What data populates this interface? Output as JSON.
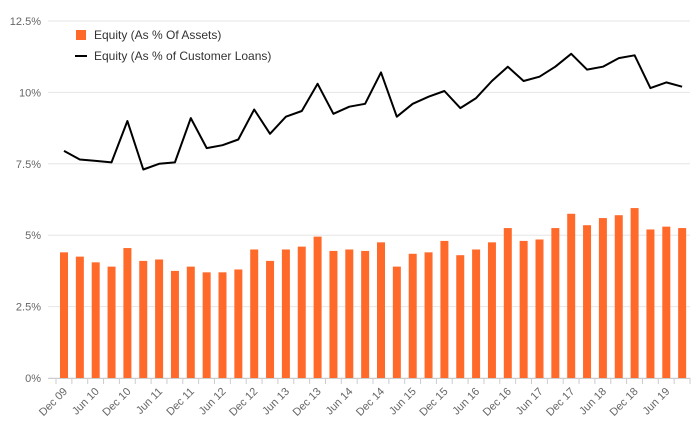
{
  "chart_data": {
    "type": "bar+line",
    "title": "",
    "xlabel": "",
    "ylabel": "",
    "ylim": [
      0,
      12.5
    ],
    "yticks": [
      "0%",
      "2.5%",
      "5%",
      "7.5%",
      "10%",
      "12.5%"
    ],
    "ytick_values": [
      0,
      2.5,
      5,
      7.5,
      10,
      12.5
    ],
    "xtick_labels": [
      "Dec 09",
      "Jun 10",
      "Dec 10",
      "Jun 11",
      "Dec 11",
      "Jun 12",
      "Dec 12",
      "Jun 13",
      "Dec 13",
      "Jun 14",
      "Dec 14",
      "Jun 15",
      "Dec 15",
      "Jun 16",
      "Dec 16",
      "Jun 17",
      "Dec 17",
      "Jun 18",
      "Dec 18",
      "Jun 19"
    ],
    "grid": true,
    "legend_position": "top-left",
    "series": [
      {
        "name": "Equity (As % Of Assets)",
        "kind": "bar",
        "color": "#ff6a2b",
        "values": [
          4.4,
          4.25,
          4.05,
          3.9,
          4.55,
          4.1,
          4.15,
          3.75,
          3.9,
          3.7,
          3.7,
          3.8,
          4.5,
          4.1,
          4.5,
          4.6,
          4.95,
          4.45,
          4.5,
          4.45,
          4.75,
          3.9,
          4.35,
          4.4,
          4.8,
          4.3,
          4.5,
          4.75,
          5.25,
          4.8,
          4.85,
          5.25,
          5.75,
          5.35,
          5.6,
          5.7,
          5.95,
          5.2,
          5.3,
          5.25
        ]
      },
      {
        "name": "Equity (As % of Customer Loans)",
        "kind": "line",
        "color": "#000000",
        "values": [
          7.95,
          7.65,
          7.6,
          7.55,
          9.0,
          7.3,
          7.5,
          7.55,
          9.1,
          8.05,
          8.15,
          8.35,
          9.4,
          8.55,
          9.15,
          9.35,
          10.3,
          9.25,
          9.5,
          9.6,
          10.7,
          9.15,
          9.6,
          9.85,
          10.05,
          9.45,
          9.8,
          10.4,
          10.9,
          10.4,
          10.55,
          10.9,
          11.35,
          10.8,
          10.9,
          11.2,
          11.3,
          10.15,
          10.35,
          10.2
        ]
      }
    ]
  }
}
